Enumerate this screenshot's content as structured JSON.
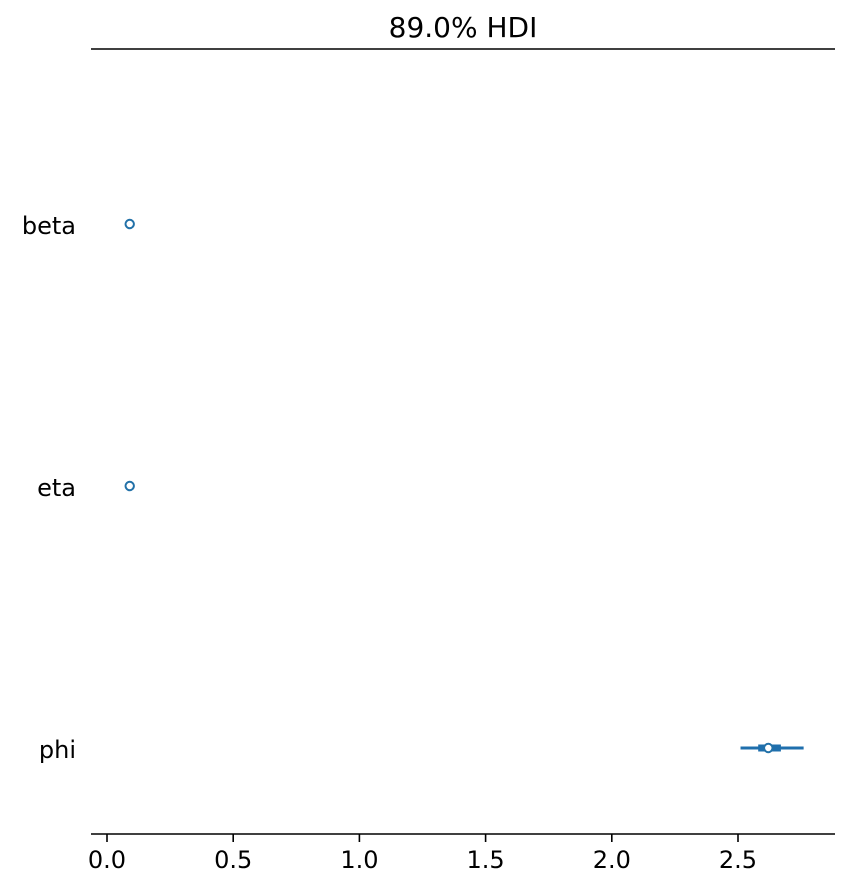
{
  "chart_data": {
    "type": "forest",
    "title": "89.0% HDI",
    "xlabel": "",
    "ylabel": "",
    "xlim": [
      -0.03,
      2.9
    ],
    "xticks": [
      0.0,
      0.5,
      1.0,
      1.5,
      2.0,
      2.5
    ],
    "xtick_labels": [
      "0.0",
      "0.5",
      "1.0",
      "1.5",
      "2.0",
      "2.5"
    ],
    "grid": false,
    "categories": [
      "beta",
      "eta",
      "phi"
    ],
    "series": [
      {
        "values": [
          {
            "label": "beta",
            "hdi_89": [
              0.09,
              0.09
            ],
            "iqr": [
              0.09,
              0.09
            ],
            "point": 0.09
          },
          {
            "label": "eta",
            "hdi_89": [
              0.09,
              0.09
            ],
            "iqr": [
              0.09,
              0.09
            ],
            "point": 0.09
          },
          {
            "label": "phi",
            "hdi_89": [
              2.51,
              2.76
            ],
            "iqr": [
              2.58,
              2.67
            ],
            "point": 2.62
          }
        ]
      }
    ],
    "colors": {
      "line": "#1f6fad",
      "marker_edge": "#2271a8",
      "marker_fill": "#ffffff",
      "axis": "#000000"
    }
  }
}
